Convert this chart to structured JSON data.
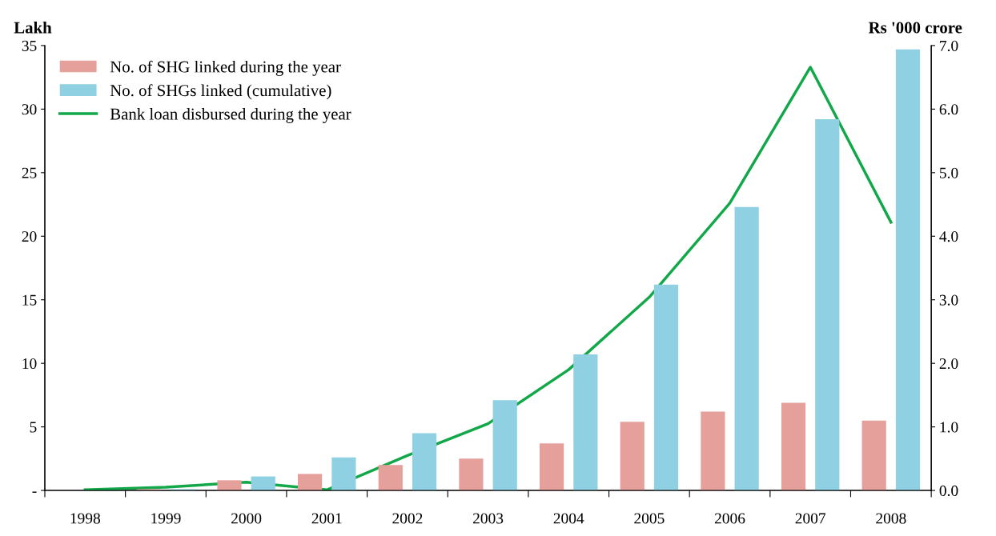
{
  "chart_data": {
    "type": "bar",
    "ylabel": "Lakh",
    "y2label": "Rs '000 crore",
    "categories": [
      "1998",
      "1999",
      "2000",
      "2001",
      "2002",
      "2003",
      "2004",
      "2005",
      "2006",
      "2007",
      "2008"
    ],
    "series": [
      {
        "name": "No. of SHG linked during the year",
        "color": "#e6a09c",
        "values": [
          null,
          0.1,
          0.8,
          1.3,
          2.0,
          2.5,
          3.7,
          5.4,
          6.2,
          6.9,
          5.5
        ]
      },
      {
        "name": "No. of SHGs linked (cumulative)",
        "color": "#8fd0e3",
        "values": [
          null,
          0.1,
          1.1,
          2.6,
          4.5,
          7.1,
          10.7,
          16.2,
          22.3,
          29.2,
          34.7
        ]
      },
      {
        "name": "Bank loan disbursed during the year",
        "type": "line",
        "axis": "y2",
        "color": "#12a84a",
        "values": [
          0.01,
          0.05,
          0.13,
          0.01,
          0.55,
          1.05,
          1.9,
          3.04,
          4.52,
          6.66,
          4.22
        ]
      }
    ],
    "ylim": [
      0,
      35
    ],
    "yticks": [
      {
        "value": 0,
        "label": "-"
      },
      5,
      10,
      15,
      20,
      25,
      30,
      35
    ],
    "y2lim": [
      0,
      7
    ],
    "y2ticks": [
      {
        "value": 0,
        "label": "0.0"
      },
      {
        "value": 1,
        "label": "1.0"
      },
      {
        "value": 2,
        "label": "2.0"
      },
      {
        "value": 3,
        "label": "3.0"
      },
      {
        "value": 4,
        "label": "4.0"
      },
      {
        "value": 5,
        "label": "5.0"
      },
      {
        "value": 6,
        "label": "6.0"
      },
      {
        "value": 7,
        "label": "7.0"
      }
    ],
    "legend": "top left",
    "grid": false
  }
}
